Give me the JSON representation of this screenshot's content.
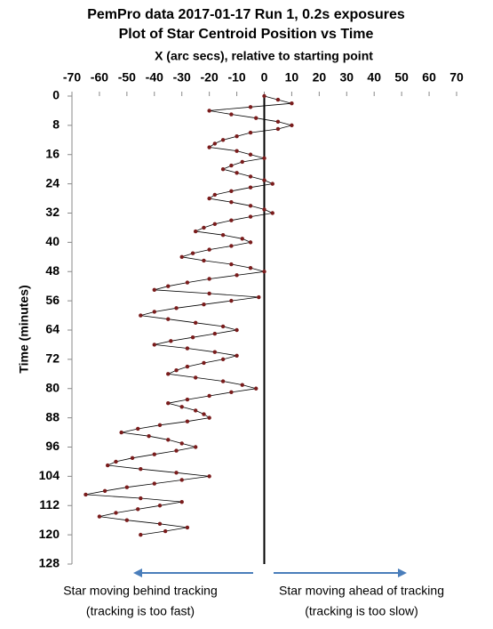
{
  "chart_data": {
    "type": "scatter",
    "title": "PemPro data 2017-01-17 Run 1, 0.2s exposures",
    "subtitle": "Plot of Star Centroid Position vs Time",
    "x_label": "X  (arc secs), relative to starting point",
    "y_label": "Time (minutes)",
    "xlim": [
      -70,
      70
    ],
    "xticks": [
      -70,
      -60,
      -50,
      -40,
      -30,
      -20,
      -10,
      0,
      10,
      20,
      30,
      40,
      50,
      60,
      70
    ],
    "ylim": [
      0,
      128
    ],
    "yticks": [
      0,
      8,
      16,
      24,
      32,
      40,
      48,
      56,
      64,
      72,
      80,
      88,
      96,
      104,
      112,
      120,
      128
    ],
    "y_inverted": true,
    "grid": false,
    "annotations": [
      "Star moving behind  tracking",
      "(tracking is too fast)",
      "Star moving ahead of tracking",
      "(tracking is too slow)"
    ],
    "series": [
      {
        "color": "#7a1c1c",
        "line_color": "#000000",
        "x": [
          0,
          5,
          10,
          -5,
          -20,
          -12,
          -3,
          5,
          10,
          5,
          -5,
          -10,
          -15,
          -18,
          -20,
          -10,
          -5,
          0,
          -8,
          -12,
          -15,
          -10,
          -5,
          0,
          3,
          -5,
          -12,
          -18,
          -20,
          -12,
          -5,
          0,
          3,
          -5,
          -12,
          -18,
          -22,
          -25,
          -15,
          -8,
          -5,
          -12,
          -20,
          -26,
          -30,
          -22,
          -12,
          -5,
          0,
          -10,
          -20,
          -28,
          -35,
          -40,
          -20,
          -2,
          -12,
          -22,
          -32,
          -40,
          -45,
          -35,
          -25,
          -15,
          -10,
          -18,
          -26,
          -34,
          -40,
          -28,
          -18,
          -10,
          -15,
          -22,
          -28,
          -32,
          -35,
          -25,
          -15,
          -8,
          -3,
          -12,
          -20,
          -28,
          -35,
          -30,
          -25,
          -22,
          -20,
          -28,
          -38,
          -46,
          -52,
          -42,
          -35,
          -30,
          -25,
          -32,
          -40,
          -48,
          -54,
          -57,
          -45,
          -32,
          -20,
          -30,
          -40,
          -50,
          -58,
          -65,
          -45,
          -30,
          -38,
          -46,
          -54,
          -60,
          -50,
          -38,
          -28,
          -36,
          -45
        ],
        "values": [
          0,
          1,
          2,
          3,
          4,
          5,
          6,
          7,
          8,
          9,
          10,
          11,
          12,
          13,
          14,
          15,
          16,
          17,
          18,
          19,
          20,
          21,
          22,
          23,
          24,
          25,
          26,
          27,
          28,
          29,
          30,
          31,
          32,
          33,
          34,
          35,
          36,
          37,
          38,
          39,
          40,
          41,
          42,
          43,
          44,
          45,
          46,
          47,
          48,
          49,
          50,
          51,
          52,
          53,
          54,
          55,
          56,
          57,
          58,
          59,
          60,
          61,
          62,
          63,
          64,
          65,
          66,
          67,
          68,
          69,
          70,
          71,
          72,
          73,
          74,
          75,
          76,
          77,
          78,
          79,
          80,
          81,
          82,
          83,
          84,
          85,
          86,
          87,
          88,
          89,
          90,
          91,
          92,
          93,
          94,
          95,
          96,
          97,
          98,
          99,
          100,
          101,
          102,
          103,
          104,
          105,
          106,
          107,
          108,
          109,
          110,
          111,
          112,
          113,
          114,
          115,
          116,
          117,
          118,
          119,
          120
        ]
      }
    ]
  }
}
